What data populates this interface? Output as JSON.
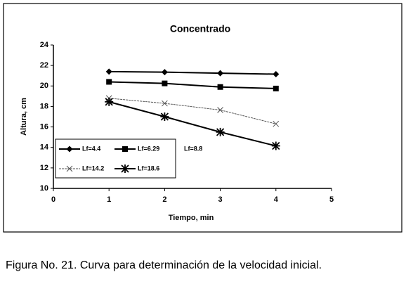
{
  "chart_data": {
    "type": "line",
    "title": "Concentrado",
    "x_label": "Tiempo, min",
    "y_label": "Altura, cm",
    "x": [
      1,
      2,
      3,
      4
    ],
    "series": [
      {
        "name": "Lf=4.4",
        "color": "#000000",
        "marker": "diamond",
        "values": [
          21.4,
          21.35,
          21.25,
          21.15
        ]
      },
      {
        "name": "Lf=6.29",
        "color": "#000000",
        "marker": "square",
        "values": [
          20.4,
          20.25,
          19.9,
          19.75
        ]
      },
      {
        "name": "Lf=8.8",
        "color": "#000000",
        "marker": "none",
        "values": [
          null,
          null,
          null,
          null
        ]
      },
      {
        "name": "Lf=14.2",
        "color": "#555555",
        "marker": "x",
        "values": [
          18.8,
          18.3,
          17.65,
          16.3
        ]
      },
      {
        "name": "Lf=18.6",
        "color": "#000000",
        "marker": "asterisk",
        "values": [
          18.45,
          17.0,
          15.5,
          14.15
        ]
      }
    ],
    "xlim": [
      0,
      5
    ],
    "xticks": [
      0,
      1,
      2,
      3,
      4,
      5
    ],
    "ylim": [
      10,
      24
    ],
    "yticks": [
      10,
      12,
      14,
      16,
      18,
      20,
      22,
      24
    ],
    "grid": false,
    "legend": "lower left"
  },
  "caption": "Figura No. 21. Curva para determinación de la velocidad inicial."
}
